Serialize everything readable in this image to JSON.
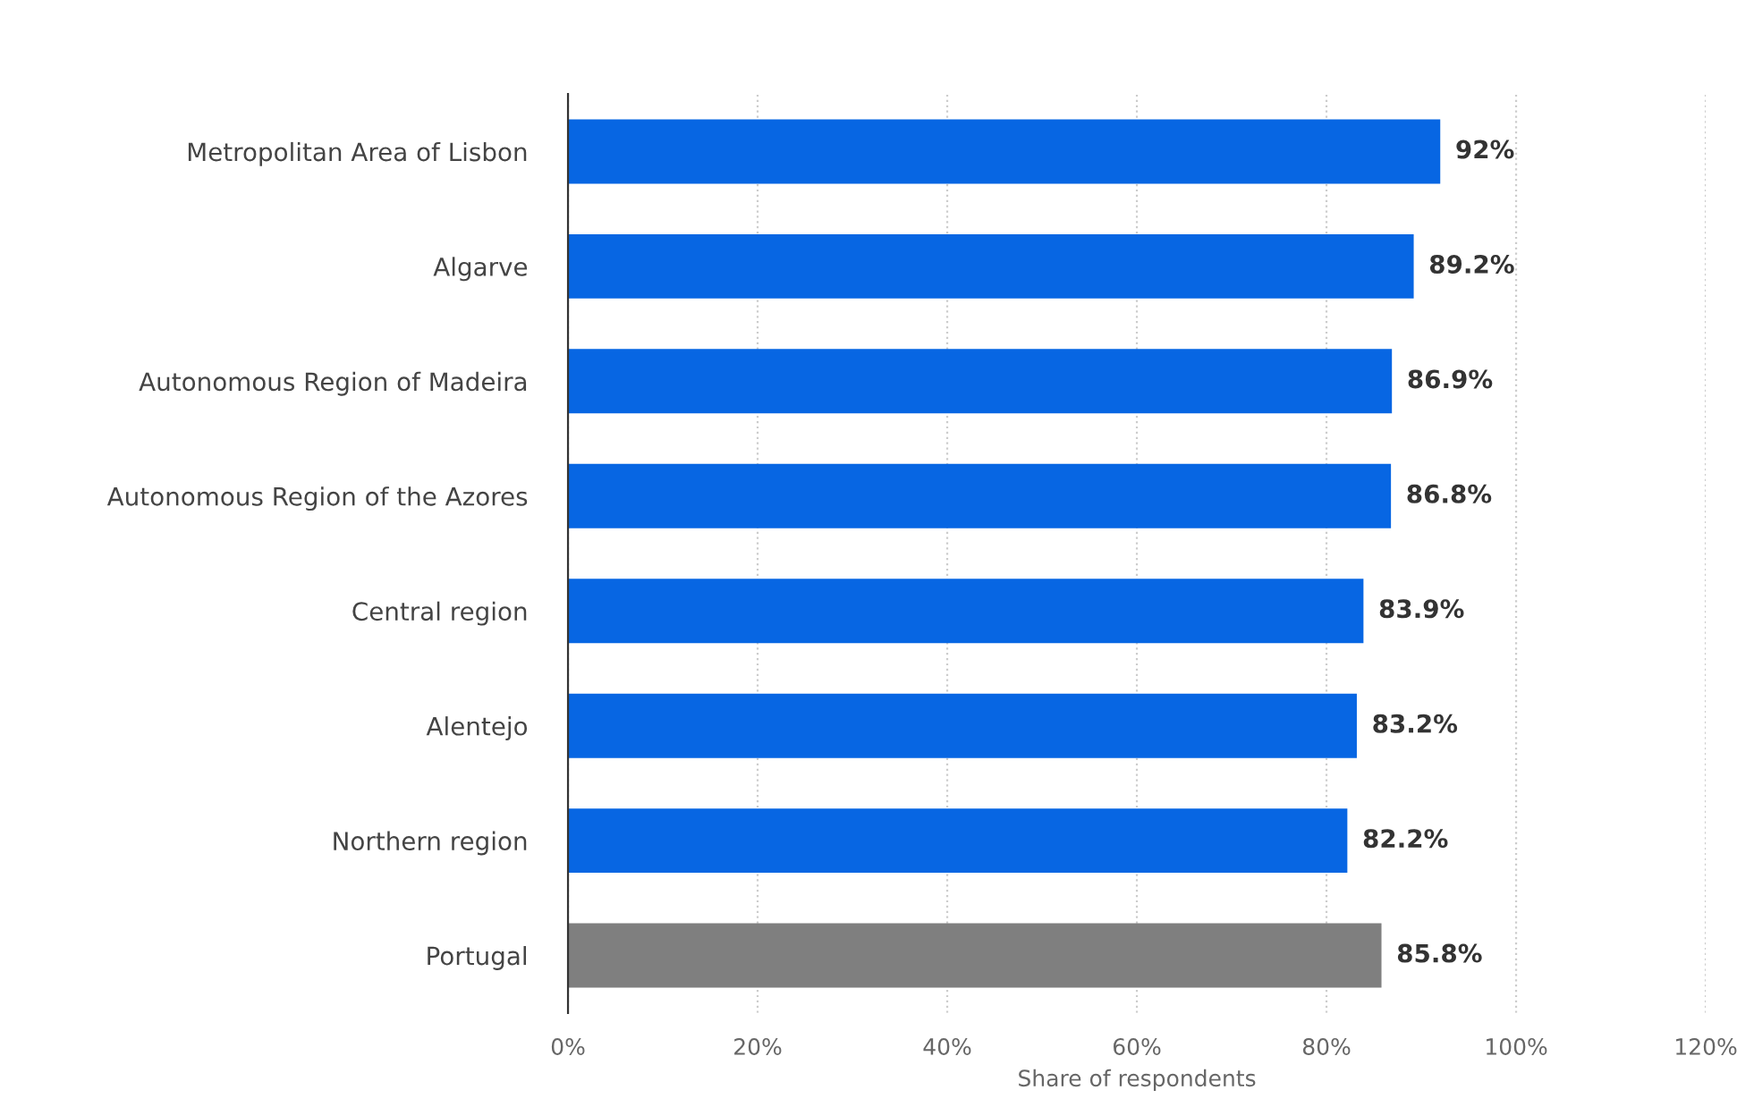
{
  "chart_data": {
    "type": "bar",
    "orientation": "horizontal",
    "xlabel": "Share of respondents",
    "categories": [
      "Metropolitan Area of Lisbon",
      "Algarve",
      "Autonomous Region of Madeira",
      "Autonomous Region of the Azores",
      "Central region",
      "Alentejo",
      "Northern region",
      "Portugal"
    ],
    "values": [
      92,
      89.2,
      86.9,
      86.8,
      83.9,
      83.2,
      82.2,
      85.8
    ],
    "colors": [
      "#0766e3",
      "#0766e3",
      "#0766e3",
      "#0766e3",
      "#0766e3",
      "#0766e3",
      "#0766e3",
      "#7f7f7f"
    ],
    "value_labels": [
      "92%",
      "89.2%",
      "86.9%",
      "86.8%",
      "83.9%",
      "83.2%",
      "82.2%",
      "85.8%"
    ],
    "xlim": [
      0,
      120
    ],
    "xticks": [
      {
        "value": 0,
        "label": "0%"
      },
      {
        "value": 20,
        "label": "20%"
      },
      {
        "value": 40,
        "label": "40%"
      },
      {
        "value": 60,
        "label": "60%"
      },
      {
        "value": 80,
        "label": "80%"
      },
      {
        "value": 100,
        "label": "100%"
      },
      {
        "value": 120,
        "label": "120%"
      }
    ],
    "grid": "x"
  }
}
